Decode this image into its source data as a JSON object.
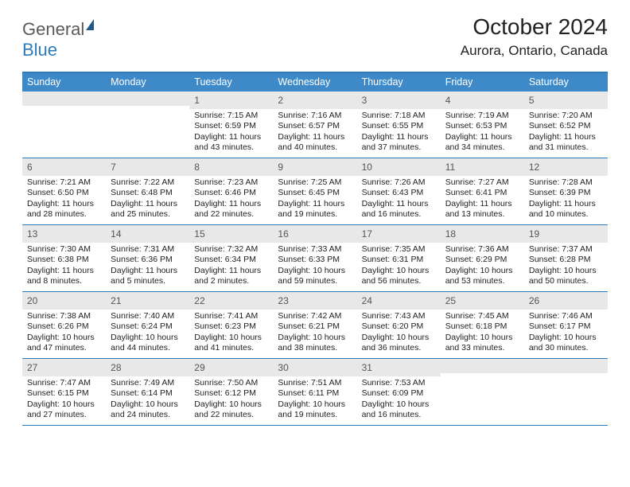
{
  "logo": {
    "part1": "General",
    "part2": "Blue"
  },
  "title": "October 2024",
  "location": "Aurora, Ontario, Canada",
  "colors": {
    "header_bg": "#3e8ac9",
    "border": "#2f7ab8",
    "numrow_bg": "#e8e8e8",
    "text": "#222222",
    "logo_gray": "#5a5a5a",
    "logo_blue": "#2b7bbf"
  },
  "weekdays": [
    "Sunday",
    "Monday",
    "Tuesday",
    "Wednesday",
    "Thursday",
    "Friday",
    "Saturday"
  ],
  "weeks": [
    [
      {
        "n": "",
        "sr": "",
        "ss": "",
        "d1": "",
        "d2": ""
      },
      {
        "n": "",
        "sr": "",
        "ss": "",
        "d1": "",
        "d2": ""
      },
      {
        "n": "1",
        "sr": "Sunrise: 7:15 AM",
        "ss": "Sunset: 6:59 PM",
        "d1": "Daylight: 11 hours",
        "d2": "and 43 minutes."
      },
      {
        "n": "2",
        "sr": "Sunrise: 7:16 AM",
        "ss": "Sunset: 6:57 PM",
        "d1": "Daylight: 11 hours",
        "d2": "and 40 minutes."
      },
      {
        "n": "3",
        "sr": "Sunrise: 7:18 AM",
        "ss": "Sunset: 6:55 PM",
        "d1": "Daylight: 11 hours",
        "d2": "and 37 minutes."
      },
      {
        "n": "4",
        "sr": "Sunrise: 7:19 AM",
        "ss": "Sunset: 6:53 PM",
        "d1": "Daylight: 11 hours",
        "d2": "and 34 minutes."
      },
      {
        "n": "5",
        "sr": "Sunrise: 7:20 AM",
        "ss": "Sunset: 6:52 PM",
        "d1": "Daylight: 11 hours",
        "d2": "and 31 minutes."
      }
    ],
    [
      {
        "n": "6",
        "sr": "Sunrise: 7:21 AM",
        "ss": "Sunset: 6:50 PM",
        "d1": "Daylight: 11 hours",
        "d2": "and 28 minutes."
      },
      {
        "n": "7",
        "sr": "Sunrise: 7:22 AM",
        "ss": "Sunset: 6:48 PM",
        "d1": "Daylight: 11 hours",
        "d2": "and 25 minutes."
      },
      {
        "n": "8",
        "sr": "Sunrise: 7:23 AM",
        "ss": "Sunset: 6:46 PM",
        "d1": "Daylight: 11 hours",
        "d2": "and 22 minutes."
      },
      {
        "n": "9",
        "sr": "Sunrise: 7:25 AM",
        "ss": "Sunset: 6:45 PM",
        "d1": "Daylight: 11 hours",
        "d2": "and 19 minutes."
      },
      {
        "n": "10",
        "sr": "Sunrise: 7:26 AM",
        "ss": "Sunset: 6:43 PM",
        "d1": "Daylight: 11 hours",
        "d2": "and 16 minutes."
      },
      {
        "n": "11",
        "sr": "Sunrise: 7:27 AM",
        "ss": "Sunset: 6:41 PM",
        "d1": "Daylight: 11 hours",
        "d2": "and 13 minutes."
      },
      {
        "n": "12",
        "sr": "Sunrise: 7:28 AM",
        "ss": "Sunset: 6:39 PM",
        "d1": "Daylight: 11 hours",
        "d2": "and 10 minutes."
      }
    ],
    [
      {
        "n": "13",
        "sr": "Sunrise: 7:30 AM",
        "ss": "Sunset: 6:38 PM",
        "d1": "Daylight: 11 hours",
        "d2": "and 8 minutes."
      },
      {
        "n": "14",
        "sr": "Sunrise: 7:31 AM",
        "ss": "Sunset: 6:36 PM",
        "d1": "Daylight: 11 hours",
        "d2": "and 5 minutes."
      },
      {
        "n": "15",
        "sr": "Sunrise: 7:32 AM",
        "ss": "Sunset: 6:34 PM",
        "d1": "Daylight: 11 hours",
        "d2": "and 2 minutes."
      },
      {
        "n": "16",
        "sr": "Sunrise: 7:33 AM",
        "ss": "Sunset: 6:33 PM",
        "d1": "Daylight: 10 hours",
        "d2": "and 59 minutes."
      },
      {
        "n": "17",
        "sr": "Sunrise: 7:35 AM",
        "ss": "Sunset: 6:31 PM",
        "d1": "Daylight: 10 hours",
        "d2": "and 56 minutes."
      },
      {
        "n": "18",
        "sr": "Sunrise: 7:36 AM",
        "ss": "Sunset: 6:29 PM",
        "d1": "Daylight: 10 hours",
        "d2": "and 53 minutes."
      },
      {
        "n": "19",
        "sr": "Sunrise: 7:37 AM",
        "ss": "Sunset: 6:28 PM",
        "d1": "Daylight: 10 hours",
        "d2": "and 50 minutes."
      }
    ],
    [
      {
        "n": "20",
        "sr": "Sunrise: 7:38 AM",
        "ss": "Sunset: 6:26 PM",
        "d1": "Daylight: 10 hours",
        "d2": "and 47 minutes."
      },
      {
        "n": "21",
        "sr": "Sunrise: 7:40 AM",
        "ss": "Sunset: 6:24 PM",
        "d1": "Daylight: 10 hours",
        "d2": "and 44 minutes."
      },
      {
        "n": "22",
        "sr": "Sunrise: 7:41 AM",
        "ss": "Sunset: 6:23 PM",
        "d1": "Daylight: 10 hours",
        "d2": "and 41 minutes."
      },
      {
        "n": "23",
        "sr": "Sunrise: 7:42 AM",
        "ss": "Sunset: 6:21 PM",
        "d1": "Daylight: 10 hours",
        "d2": "and 38 minutes."
      },
      {
        "n": "24",
        "sr": "Sunrise: 7:43 AM",
        "ss": "Sunset: 6:20 PM",
        "d1": "Daylight: 10 hours",
        "d2": "and 36 minutes."
      },
      {
        "n": "25",
        "sr": "Sunrise: 7:45 AM",
        "ss": "Sunset: 6:18 PM",
        "d1": "Daylight: 10 hours",
        "d2": "and 33 minutes."
      },
      {
        "n": "26",
        "sr": "Sunrise: 7:46 AM",
        "ss": "Sunset: 6:17 PM",
        "d1": "Daylight: 10 hours",
        "d2": "and 30 minutes."
      }
    ],
    [
      {
        "n": "27",
        "sr": "Sunrise: 7:47 AM",
        "ss": "Sunset: 6:15 PM",
        "d1": "Daylight: 10 hours",
        "d2": "and 27 minutes."
      },
      {
        "n": "28",
        "sr": "Sunrise: 7:49 AM",
        "ss": "Sunset: 6:14 PM",
        "d1": "Daylight: 10 hours",
        "d2": "and 24 minutes."
      },
      {
        "n": "29",
        "sr": "Sunrise: 7:50 AM",
        "ss": "Sunset: 6:12 PM",
        "d1": "Daylight: 10 hours",
        "d2": "and 22 minutes."
      },
      {
        "n": "30",
        "sr": "Sunrise: 7:51 AM",
        "ss": "Sunset: 6:11 PM",
        "d1": "Daylight: 10 hours",
        "d2": "and 19 minutes."
      },
      {
        "n": "31",
        "sr": "Sunrise: 7:53 AM",
        "ss": "Sunset: 6:09 PM",
        "d1": "Daylight: 10 hours",
        "d2": "and 16 minutes."
      },
      {
        "n": "",
        "sr": "",
        "ss": "",
        "d1": "",
        "d2": ""
      },
      {
        "n": "",
        "sr": "",
        "ss": "",
        "d1": "",
        "d2": ""
      }
    ]
  ]
}
